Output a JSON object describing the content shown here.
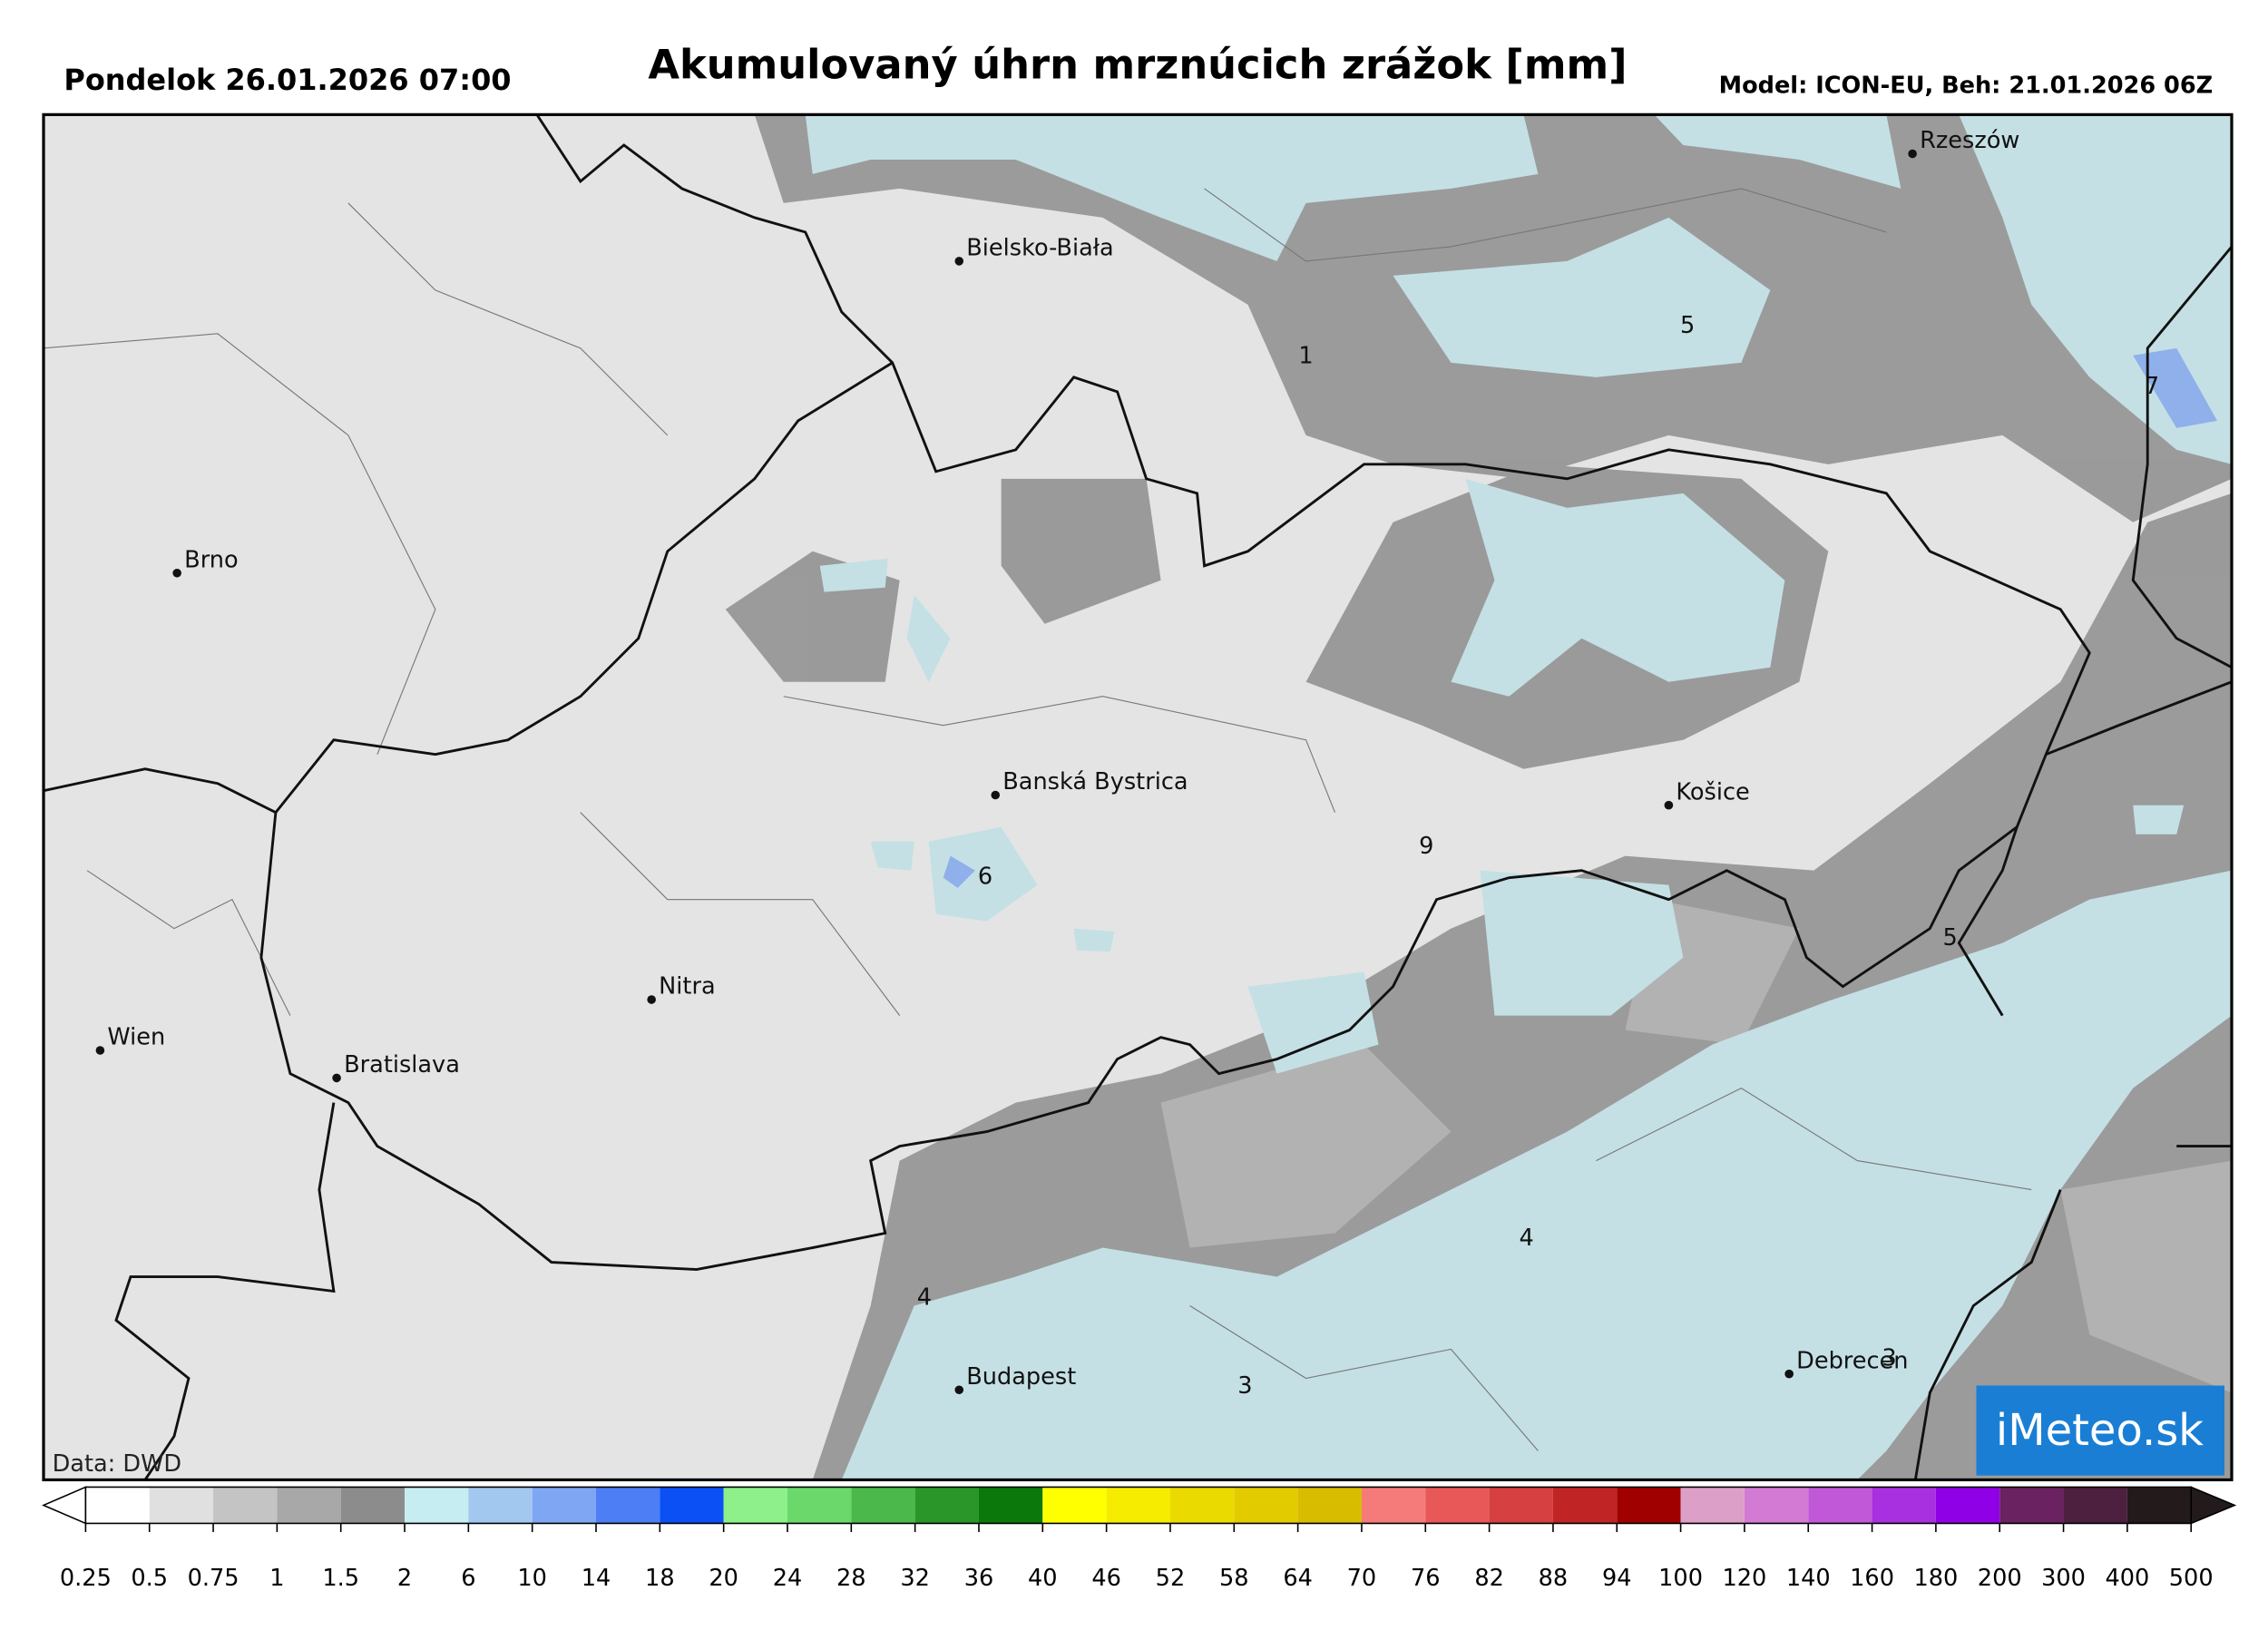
{
  "header": {
    "date": "Pondelok 26.01.2026 07:00",
    "title": "Akumulovaný úhrn mrznúcich zrážok [mm]",
    "model": "Model: ICON-EU, Beh: 21.01.2026 06Z"
  },
  "map": {
    "cities": [
      "Rzeszów",
      "Bielsko-Biała",
      "Brno",
      "Banská Bystrica",
      "Košice",
      "Nitra",
      "Wien",
      "Bratislava",
      "Budapest",
      "Debrecen"
    ],
    "annotations": [
      1,
      5,
      7,
      6,
      9,
      5,
      4,
      4,
      3,
      3
    ],
    "source": "Data: DWD",
    "colorbar": {
      "ticks": [
        0.25,
        0.5,
        0.75,
        1,
        1.5,
        2,
        6,
        10,
        14,
        18,
        20,
        24,
        28,
        32,
        36,
        40,
        46,
        52,
        58,
        64,
        70,
        76,
        82,
        88,
        94,
        100,
        120,
        140,
        160,
        180,
        200,
        300,
        400,
        500
      ],
      "colors": [
        "#ffffff",
        "#e0e0e0",
        "#c4c4c4",
        "#a8a8a8",
        "#8c8c8c",
        "#c6eef2",
        "#a2c8f0",
        "#7ea6f2",
        "#4d7ef5",
        "#0a50f5",
        "#8ef08a",
        "#6bd86b",
        "#4ab84a",
        "#2a962a",
        "#0a780a",
        "#ffff00",
        "#f5ec00",
        "#ebda00",
        "#e2cc00",
        "#d8bc00",
        "#f57a7a",
        "#e85858",
        "#d64040",
        "#c02424",
        "#a00000",
        "#dca0c8",
        "#d27ad4",
        "#c058d8",
        "#a830e0",
        "#9000e6",
        "#6a2260",
        "#4e2040",
        "#231a1c"
      ]
    }
  },
  "logo": "iMeteo.sk"
}
